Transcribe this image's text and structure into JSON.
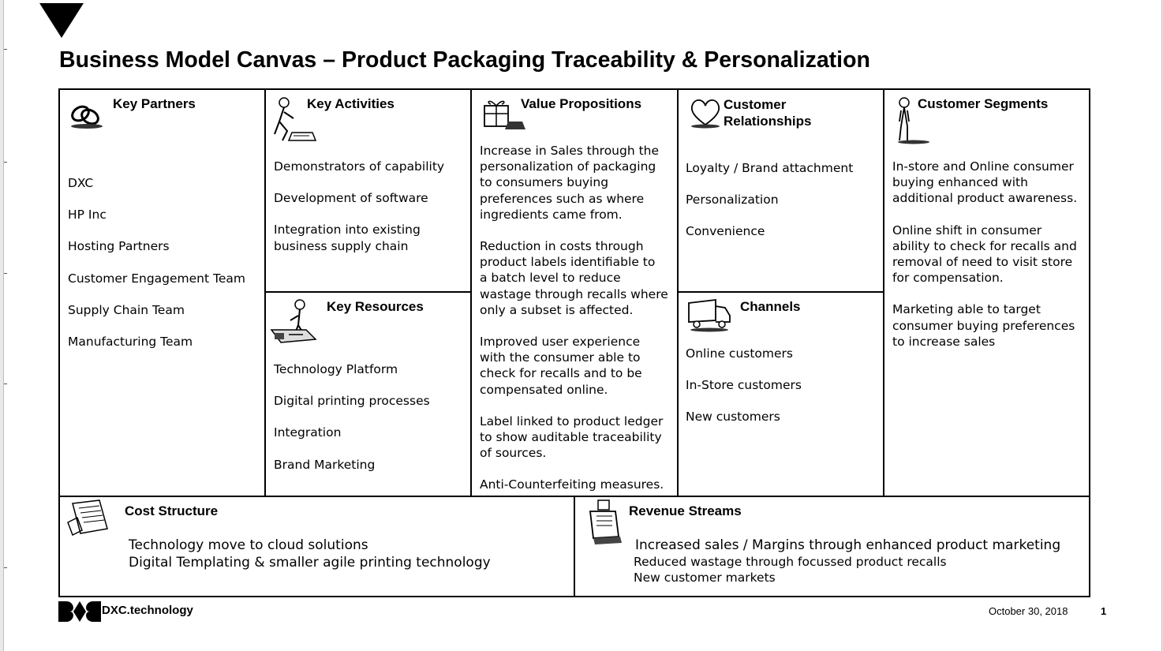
{
  "title": "Business Model Canvas – Product Packaging Traceability & Personalization",
  "key_partners": {
    "heading": "Key Partners",
    "icon": "chain-links-icon",
    "items": [
      "DXC",
      "HP Inc",
      "Hosting Partners",
      "Customer Engagement Team",
      "Supply Chain Team",
      "Manufacturing Team"
    ]
  },
  "key_activities": {
    "heading": "Key Activities",
    "icon": "worker-icon",
    "items": [
      "Demonstrators of capability",
      "Development of software",
      "Integration into existing",
      "business supply chain"
    ]
  },
  "key_resources": {
    "heading": "Key Resources",
    "icon": "machinery-icon",
    "items": [
      "Technology Platform",
      "Digital printing processes",
      "Integration",
      "Brand Marketing"
    ]
  },
  "value_propositions": {
    "heading": "Value Propositions",
    "icon": "gift-icon",
    "lines": [
      "Increase in Sales through the",
      "personalization of packaging",
      "to consumers buying",
      "preferences such as where",
      "ingredients came from.",
      "Reduction in costs through",
      "product labels identifiable to",
      "a batch level to reduce",
      "wastage through recalls where",
      "only a subset is affected.",
      "Improved user experience",
      "with the consumer able to",
      "check for recalls and to be",
      "compensated online.",
      "Label linked to product ledger",
      "to show auditable traceability",
      "of sources.",
      "Anti-Counterfeiting measures."
    ]
  },
  "customer_relationships": {
    "heading_line1": "Customer",
    "heading_line2": "Relationships",
    "icon": "heart-icon",
    "items": [
      "Loyalty / Brand attachment",
      "Personalization",
      "Convenience"
    ]
  },
  "channels": {
    "heading": "Channels",
    "icon": "truck-icon",
    "items": [
      "Online customers",
      "In-Store customers",
      "New customers"
    ]
  },
  "customer_segments": {
    "heading": "Customer Segments",
    "icon": "person-icon",
    "lines": [
      "In-store and Online consumer",
      "buying enhanced with",
      "additional product awareness.",
      "Online shift in consumer",
      "ability to check for recalls and",
      "removal of need to visit store",
      "for compensation.",
      "Marketing able to target",
      "consumer buying preferences",
      "to increase sales"
    ]
  },
  "cost_structure": {
    "heading": "Cost Structure",
    "icon": "receipt-icon",
    "items": [
      "Technology move to cloud solutions",
      "Digital Templating & smaller agile printing technology"
    ]
  },
  "revenue_streams": {
    "heading": "Revenue Streams",
    "icon": "cash-register-icon",
    "items": [
      "Increased sales / Margins through enhanced product marketing",
      "Reduced wastage through focussed product recalls",
      "New customer markets"
    ]
  },
  "footer": {
    "brand": "DXC.technology",
    "date": "October 30, 2018",
    "page_number": "1"
  }
}
